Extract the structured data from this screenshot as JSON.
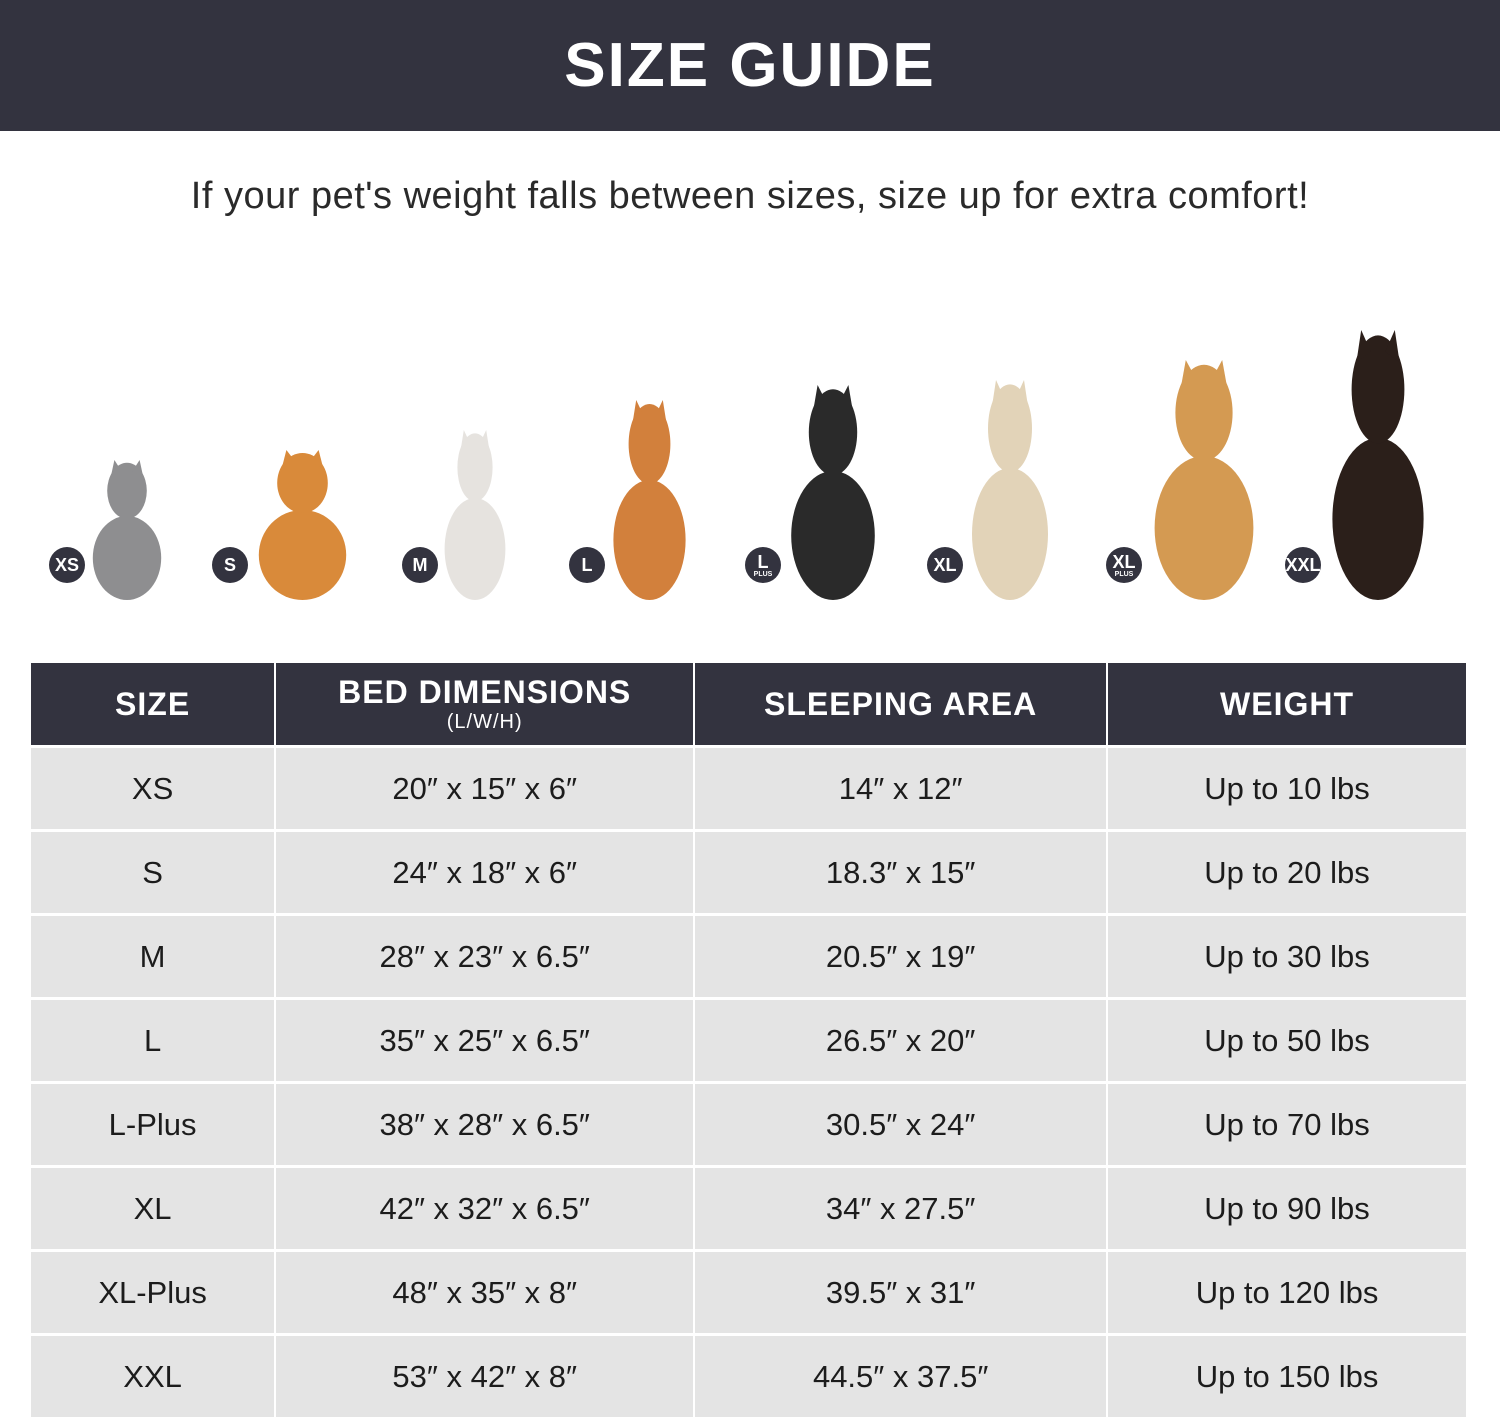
{
  "title": "SIZE GUIDE",
  "subtitle": "If your pet's weight falls between sizes, size up for extra comfort!",
  "colors": {
    "header": "#33333f",
    "row": "#e4e4e4"
  },
  "pets": [
    {
      "badge": "XS",
      "badge_sub": "",
      "animal": "cat",
      "color": "#8e8e90"
    },
    {
      "badge": "S",
      "badge_sub": "",
      "animal": "pomeranian",
      "color": "#d98a3a"
    },
    {
      "badge": "M",
      "badge_sub": "",
      "animal": "french-bulldog",
      "color": "#e6e3df"
    },
    {
      "badge": "L",
      "badge_sub": "",
      "animal": "shiba-inu",
      "color": "#d2803c"
    },
    {
      "badge": "L",
      "badge_sub": "PLUS",
      "animal": "border-collie",
      "color": "#2a2a2a"
    },
    {
      "badge": "XL",
      "badge_sub": "",
      "animal": "labrador",
      "color": "#e2d3b8"
    },
    {
      "badge": "XL",
      "badge_sub": "PLUS",
      "animal": "golden-retriever",
      "color": "#d49a52"
    },
    {
      "badge": "XXL",
      "badge_sub": "",
      "animal": "doberman",
      "color": "#2b1f1a"
    }
  ],
  "table": {
    "headers": [
      {
        "label": "SIZE",
        "sub": ""
      },
      {
        "label": "BED DIMENSIONS",
        "sub": "(L/W/H)"
      },
      {
        "label": "SLEEPING AREA",
        "sub": ""
      },
      {
        "label": "WEIGHT",
        "sub": ""
      }
    ],
    "rows": [
      [
        "XS",
        "20″ x 15″ x 6″",
        "14″ x 12″",
        "Up to 10 lbs"
      ],
      [
        "S",
        "24″ x 18″ x 6″",
        "18.3″ x 15″",
        "Up to 20 lbs"
      ],
      [
        "M",
        "28″ x 23″ x 6.5″",
        "20.5″ x 19″",
        "Up to 30 lbs"
      ],
      [
        "L",
        "35″ x 25″ x 6.5″",
        "26.5″ x 20″",
        "Up to 50 lbs"
      ],
      [
        "L-Plus",
        "38″ x 28″ x 6.5″",
        "30.5″ x 24″",
        "Up to 70 lbs"
      ],
      [
        "XL",
        "42″ x 32″ x 6.5″",
        "34″ x 27.5″",
        "Up to 90 lbs"
      ],
      [
        "XL-Plus",
        "48″ x 35″ x 8″",
        "39.5″ x 31″",
        "Up to 120 lbs"
      ],
      [
        "XXL",
        "53″ x 42″ x 8″",
        "44.5″ x 37.5″",
        "Up to 150 lbs"
      ]
    ]
  }
}
